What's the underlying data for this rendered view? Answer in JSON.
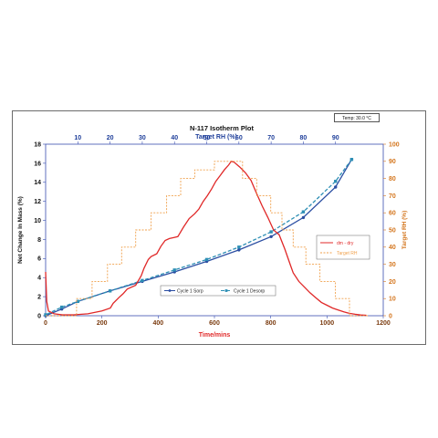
{
  "chart_data": {
    "type": "line",
    "title": "N-117 Isotherm Plot",
    "top_axis_label": "Target RH (%)",
    "xlabel": "Time/mins",
    "ylabel": "Net Change In Mass (%)",
    "y2label": "Target RH (%)",
    "temperature": "Temp: 30.0 °C",
    "xlim": [
      0,
      1200
    ],
    "ylim": [
      0,
      18
    ],
    "y2lim": [
      0,
      100
    ],
    "x_ticks": [
      0,
      200,
      400,
      600,
      800,
      1000,
      1200
    ],
    "y_ticks": [
      0,
      2,
      4,
      6,
      8,
      10,
      12,
      14,
      16,
      18
    ],
    "y2_ticks": [
      0,
      10,
      20,
      30,
      40,
      50,
      60,
      70,
      80,
      90,
      100
    ],
    "top_ticks": [
      10,
      20,
      30,
      40,
      50,
      60,
      70,
      80,
      90
    ],
    "series": [
      {
        "name": "Cycle 1 Sorp",
        "axis": "top-rh",
        "color": "#2b4ea2",
        "dash": "",
        "marker": "circle",
        "x": [
          0,
          5,
          10,
          20,
          30,
          40,
          50,
          60,
          70,
          80,
          90,
          95
        ],
        "y": [
          0,
          0.7,
          1.5,
          2.6,
          3.6,
          4.6,
          5.7,
          6.9,
          8.3,
          10.3,
          13.5,
          16.4
        ]
      },
      {
        "name": "Cycle 1 Desorp",
        "axis": "top-rh",
        "color": "#2e8fb5",
        "dash": "4,2",
        "marker": "square",
        "x": [
          95,
          90,
          80,
          70,
          60,
          50,
          40,
          30,
          20,
          10,
          5,
          0
        ],
        "y": [
          16.4,
          14.1,
          10.9,
          8.8,
          7.2,
          5.9,
          4.8,
          3.7,
          2.6,
          1.5,
          0.9,
          0.1
        ]
      },
      {
        "name": "dm - dry",
        "axis": "time-mass",
        "color": "#e02828",
        "dash": "",
        "marker": "",
        "x": [
          0,
          4,
          10,
          30,
          60,
          100,
          150,
          200,
          230,
          240,
          260,
          275,
          290,
          320,
          340,
          350,
          365,
          375,
          395,
          410,
          425,
          440,
          455,
          470,
          490,
          510,
          530,
          545,
          560,
          575,
          590,
          605,
          620,
          635,
          650,
          660,
          670,
          690,
          710,
          730,
          750,
          770,
          790,
          810,
          830,
          850,
          870,
          880,
          900,
          920,
          940,
          960,
          980,
          1000,
          1020,
          1040,
          1060,
          1080,
          1100,
          1120,
          1140
        ],
        "y": [
          4.6,
          1.5,
          0.5,
          0.2,
          0.1,
          0.1,
          0.2,
          0.5,
          0.8,
          1.3,
          1.9,
          2.3,
          2.8,
          3.2,
          4.2,
          5.0,
          5.9,
          6.2,
          6.5,
          7.3,
          7.9,
          8.1,
          8.2,
          8.3,
          9.3,
          10.2,
          10.7,
          11.2,
          12.0,
          12.6,
          13.3,
          14.1,
          14.7,
          15.3,
          15.8,
          16.2,
          16.1,
          15.6,
          15.0,
          14.2,
          12.8,
          11.5,
          10.3,
          9.0,
          8.5,
          7.0,
          5.3,
          4.5,
          3.6,
          3.0,
          2.4,
          1.9,
          1.4,
          1.1,
          0.8,
          0.6,
          0.4,
          0.25,
          0.15,
          0.08,
          0.05
        ]
      },
      {
        "name": "Target RH",
        "axis": "time-rh",
        "color": "#f0a04b",
        "dash": "2,1.5",
        "marker": "",
        "steps": [
          [
            0,
            0
          ],
          [
            110,
            10
          ],
          [
            165,
            20
          ],
          [
            220,
            30
          ],
          [
            270,
            40
          ],
          [
            320,
            50
          ],
          [
            375,
            60
          ],
          [
            430,
            70
          ],
          [
            480,
            80
          ],
          [
            530,
            85
          ],
          [
            600,
            90
          ],
          [
            700,
            80
          ],
          [
            750,
            70
          ],
          [
            800,
            60
          ],
          [
            840,
            50
          ],
          [
            880,
            40
          ],
          [
            925,
            30
          ],
          [
            975,
            20
          ],
          [
            1030,
            10
          ],
          [
            1080,
            0
          ],
          [
            1150,
            0
          ]
        ]
      }
    ],
    "legend_left": {
      "placement": "bottom-center",
      "entries": [
        "Cycle 1 Sorp",
        "Cycle 1 Desorp"
      ]
    },
    "legend_right": {
      "placement": "center-right",
      "entries": [
        "dm - dry",
        "Target RH"
      ]
    }
  }
}
